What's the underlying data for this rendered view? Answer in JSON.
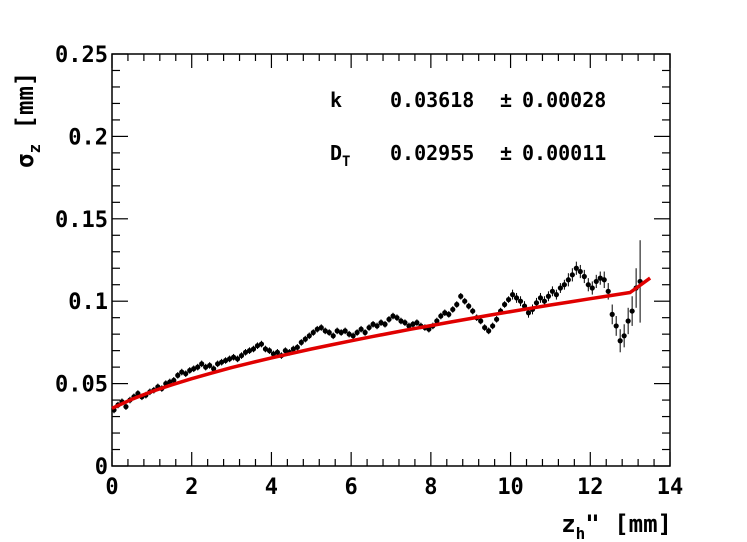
{
  "chart_data": {
    "type": "scatter",
    "title": "",
    "xlabel": {
      "main": "z",
      "sub": "h",
      "suffix": "\"  [mm]"
    },
    "ylabel": {
      "main": "σ",
      "sub": "z",
      "suffix": " [mm]"
    },
    "xlim": [
      0,
      14
    ],
    "ylim": [
      0,
      0.25
    ],
    "xticks": [
      0,
      2,
      4,
      6,
      8,
      10,
      12,
      14
    ],
    "xtick_labels": [
      "0",
      "2",
      "4",
      "6",
      "8",
      "10",
      "12",
      "14"
    ],
    "yticks": [
      0,
      0.05,
      0.1,
      0.15,
      0.2,
      0.25
    ],
    "ytick_labels": [
      "0",
      "0.05",
      "0.1",
      "0.15",
      "0.2",
      "0.25"
    ],
    "grid": false,
    "fit_params": [
      {
        "name": "k",
        "sub": "",
        "value": "0.03618",
        "error": "0.00028"
      },
      {
        "name": "D",
        "sub": "T",
        "value": "0.02955",
        "error": "0.00011"
      }
    ],
    "fit": {
      "name": "fit",
      "color": "#e00000",
      "points": [
        [
          0,
          0.035
        ],
        [
          0.5,
          0.0405
        ],
        [
          1,
          0.0452
        ],
        [
          1.5,
          0.0493
        ],
        [
          2,
          0.053
        ],
        [
          2.5,
          0.0564
        ],
        [
          3,
          0.0597
        ],
        [
          3.5,
          0.0627
        ],
        [
          4,
          0.0656
        ],
        [
          4.5,
          0.0683
        ],
        [
          5,
          0.071
        ],
        [
          5.5,
          0.0735
        ],
        [
          6,
          0.076
        ],
        [
          6.5,
          0.0784
        ],
        [
          7,
          0.0807
        ],
        [
          7.5,
          0.083
        ],
        [
          8,
          0.0852
        ],
        [
          8.5,
          0.0874
        ],
        [
          9,
          0.0895
        ],
        [
          9.5,
          0.0916
        ],
        [
          10,
          0.0937
        ],
        [
          10.5,
          0.0957
        ],
        [
          11,
          0.0977
        ],
        [
          11.5,
          0.0996
        ],
        [
          12,
          0.1015
        ],
        [
          12.5,
          0.1034
        ],
        [
          13,
          0.1053
        ],
        [
          13.5,
          0.114
        ]
      ]
    },
    "series": [
      {
        "color": "#000000",
        "points": [
          [
            0.05,
            0.034,
            0.002
          ],
          [
            0.15,
            0.037,
            0.002
          ],
          [
            0.25,
            0.039,
            0.002
          ],
          [
            0.35,
            0.036,
            0.002
          ],
          [
            0.45,
            0.04,
            0.002
          ],
          [
            0.55,
            0.042,
            0.002
          ],
          [
            0.65,
            0.044,
            0.002
          ],
          [
            0.75,
            0.042,
            0.002
          ],
          [
            0.85,
            0.043,
            0.002
          ],
          [
            0.95,
            0.045,
            0.002
          ],
          [
            1.05,
            0.046,
            0.002
          ],
          [
            1.15,
            0.048,
            0.002
          ],
          [
            1.25,
            0.047,
            0.002
          ],
          [
            1.35,
            0.05,
            0.002
          ],
          [
            1.45,
            0.051,
            0.002
          ],
          [
            1.55,
            0.052,
            0.002
          ],
          [
            1.65,
            0.055,
            0.002
          ],
          [
            1.75,
            0.057,
            0.002
          ],
          [
            1.85,
            0.056,
            0.002
          ],
          [
            1.95,
            0.058,
            0.002
          ],
          [
            2.05,
            0.059,
            0.002
          ],
          [
            2.15,
            0.06,
            0.002
          ],
          [
            2.25,
            0.062,
            0.002
          ],
          [
            2.35,
            0.06,
            0.002
          ],
          [
            2.45,
            0.061,
            0.002
          ],
          [
            2.55,
            0.059,
            0.002
          ],
          [
            2.65,
            0.062,
            0.002
          ],
          [
            2.75,
            0.063,
            0.002
          ],
          [
            2.85,
            0.064,
            0.002
          ],
          [
            2.95,
            0.065,
            0.002
          ],
          [
            3.05,
            0.066,
            0.002
          ],
          [
            3.15,
            0.065,
            0.002
          ],
          [
            3.25,
            0.067,
            0.002
          ],
          [
            3.35,
            0.069,
            0.002
          ],
          [
            3.45,
            0.07,
            0.002
          ],
          [
            3.55,
            0.071,
            0.002
          ],
          [
            3.65,
            0.073,
            0.002
          ],
          [
            3.75,
            0.074,
            0.002
          ],
          [
            3.85,
            0.071,
            0.002
          ],
          [
            3.95,
            0.07,
            0.002
          ],
          [
            4.05,
            0.068,
            0.002
          ],
          [
            4.15,
            0.069,
            0.002
          ],
          [
            4.25,
            0.067,
            0.002
          ],
          [
            4.35,
            0.07,
            0.002
          ],
          [
            4.45,
            0.069,
            0.002
          ],
          [
            4.55,
            0.071,
            0.002
          ],
          [
            4.65,
            0.072,
            0.002
          ],
          [
            4.75,
            0.075,
            0.002
          ],
          [
            4.85,
            0.077,
            0.002
          ],
          [
            4.95,
            0.079,
            0.002
          ],
          [
            5.05,
            0.081,
            0.002
          ],
          [
            5.15,
            0.083,
            0.002
          ],
          [
            5.25,
            0.084,
            0.002
          ],
          [
            5.35,
            0.082,
            0.002
          ],
          [
            5.45,
            0.081,
            0.002
          ],
          [
            5.55,
            0.079,
            0.002
          ],
          [
            5.65,
            0.082,
            0.002
          ],
          [
            5.75,
            0.081,
            0.002
          ],
          [
            5.85,
            0.082,
            0.002
          ],
          [
            5.95,
            0.08,
            0.002
          ],
          [
            6.05,
            0.079,
            0.002
          ],
          [
            6.15,
            0.081,
            0.002
          ],
          [
            6.25,
            0.083,
            0.002
          ],
          [
            6.35,
            0.081,
            0.002
          ],
          [
            6.45,
            0.084,
            0.002
          ],
          [
            6.55,
            0.086,
            0.002
          ],
          [
            6.65,
            0.085,
            0.002
          ],
          [
            6.75,
            0.087,
            0.002
          ],
          [
            6.85,
            0.086,
            0.002
          ],
          [
            6.95,
            0.089,
            0.002
          ],
          [
            7.05,
            0.091,
            0.002
          ],
          [
            7.15,
            0.09,
            0.002
          ],
          [
            7.25,
            0.088,
            0.002
          ],
          [
            7.35,
            0.087,
            0.002
          ],
          [
            7.45,
            0.085,
            0.002
          ],
          [
            7.55,
            0.086,
            0.002
          ],
          [
            7.65,
            0.087,
            0.002
          ],
          [
            7.75,
            0.085,
            0.002
          ],
          [
            7.85,
            0.084,
            0.002
          ],
          [
            7.95,
            0.083,
            0.002
          ],
          [
            8.05,
            0.085,
            0.002
          ],
          [
            8.15,
            0.088,
            0.002
          ],
          [
            8.25,
            0.091,
            0.002
          ],
          [
            8.35,
            0.093,
            0.002
          ],
          [
            8.45,
            0.092,
            0.002
          ],
          [
            8.55,
            0.095,
            0.002
          ],
          [
            8.65,
            0.098,
            0.002
          ],
          [
            8.75,
            0.103,
            0.002
          ],
          [
            8.85,
            0.1,
            0.002
          ],
          [
            8.95,
            0.097,
            0.002
          ],
          [
            9.05,
            0.094,
            0.002
          ],
          [
            9.15,
            0.09,
            0.002
          ],
          [
            9.25,
            0.088,
            0.002
          ],
          [
            9.35,
            0.084,
            0.002
          ],
          [
            9.45,
            0.082,
            0.002
          ],
          [
            9.55,
            0.085,
            0.002
          ],
          [
            9.65,
            0.089,
            0.002
          ],
          [
            9.75,
            0.094,
            0.002
          ],
          [
            9.85,
            0.098,
            0.002
          ],
          [
            9.95,
            0.101,
            0.002
          ],
          [
            10.05,
            0.104,
            0.003
          ],
          [
            10.15,
            0.102,
            0.003
          ],
          [
            10.25,
            0.1,
            0.003
          ],
          [
            10.35,
            0.097,
            0.003
          ],
          [
            10.45,
            0.093,
            0.003
          ],
          [
            10.55,
            0.095,
            0.003
          ],
          [
            10.65,
            0.099,
            0.003
          ],
          [
            10.75,
            0.102,
            0.003
          ],
          [
            10.85,
            0.1,
            0.003
          ],
          [
            10.95,
            0.103,
            0.003
          ],
          [
            11.05,
            0.106,
            0.003
          ],
          [
            11.15,
            0.104,
            0.003
          ],
          [
            11.25,
            0.108,
            0.003
          ],
          [
            11.35,
            0.11,
            0.003
          ],
          [
            11.45,
            0.113,
            0.004
          ],
          [
            11.55,
            0.116,
            0.004
          ],
          [
            11.65,
            0.12,
            0.004
          ],
          [
            11.75,
            0.118,
            0.004
          ],
          [
            11.85,
            0.115,
            0.004
          ],
          [
            11.95,
            0.11,
            0.004
          ],
          [
            12.05,
            0.108,
            0.004
          ],
          [
            12.15,
            0.112,
            0.004
          ],
          [
            12.25,
            0.114,
            0.004
          ],
          [
            12.35,
            0.113,
            0.005
          ],
          [
            12.45,
            0.106,
            0.005
          ],
          [
            12.55,
            0.092,
            0.006
          ],
          [
            12.65,
            0.085,
            0.006
          ],
          [
            12.75,
            0.076,
            0.007
          ],
          [
            12.85,
            0.079,
            0.007
          ],
          [
            12.95,
            0.088,
            0.008
          ],
          [
            13.05,
            0.094,
            0.009
          ],
          [
            13.15,
            0.108,
            0.012
          ],
          [
            13.25,
            0.112,
            0.025
          ]
        ]
      }
    ]
  }
}
